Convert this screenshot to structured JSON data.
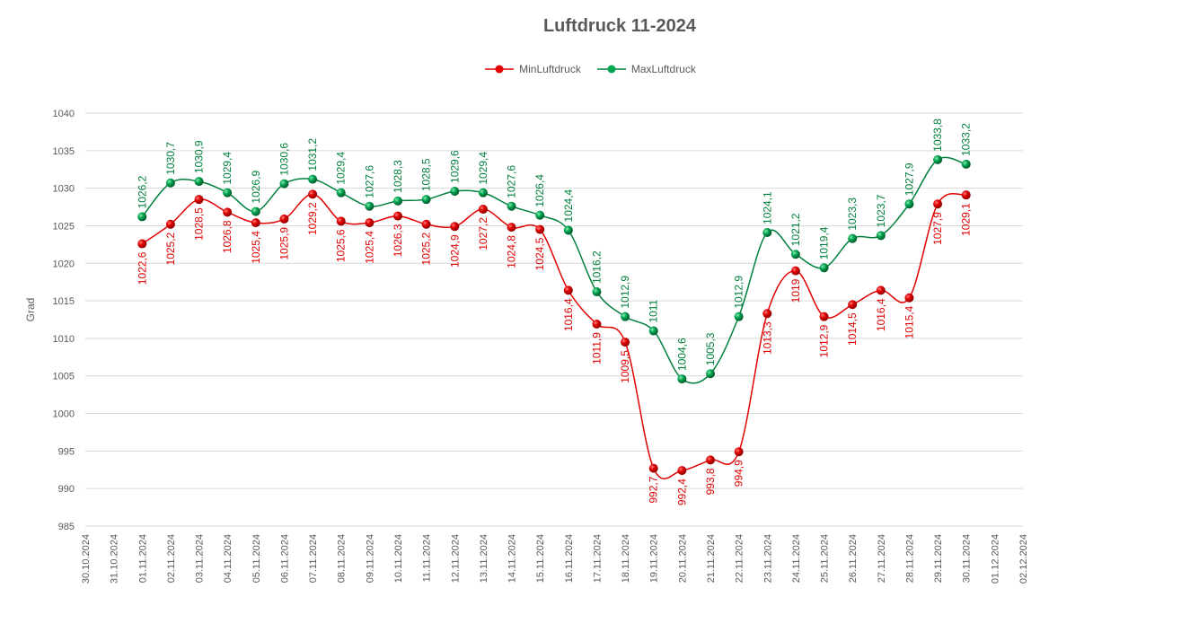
{
  "chart_data": {
    "type": "line",
    "title": "Luftdruck 11-2024",
    "ylabel": "Grad",
    "xlabel": "",
    "ylim": [
      985,
      1040
    ],
    "yticks": [
      985,
      990,
      995,
      1000,
      1005,
      1010,
      1015,
      1020,
      1025,
      1030,
      1035,
      1040
    ],
    "grid": true,
    "legend_position": "top",
    "x_ticks": [
      "30.10.2024",
      "31.10.2024",
      "01.11.2024",
      "02.11.2024",
      "03.11.2024",
      "04.11.2024",
      "05.11.2024",
      "06.11.2024",
      "07.11.2024",
      "08.11.2024",
      "09.11.2024",
      "10.11.2024",
      "11.11.2024",
      "12.11.2024",
      "13.11.2024",
      "14.11.2024",
      "15.11.2024",
      "16.11.2024",
      "17.11.2024",
      "18.11.2024",
      "19.11.2024",
      "20.11.2024",
      "21.11.2024",
      "22.11.2024",
      "23.11.2024",
      "24.11.2024",
      "25.11.2024",
      "26.11.2024",
      "27.11.2024",
      "28.11.2024",
      "29.11.2024",
      "30.11.2024",
      "01.12.2024",
      "02.12.2024"
    ],
    "x": [
      "01.11.2024",
      "02.11.2024",
      "03.11.2024",
      "04.11.2024",
      "05.11.2024",
      "06.11.2024",
      "07.11.2024",
      "08.11.2024",
      "09.11.2024",
      "10.11.2024",
      "11.11.2024",
      "12.11.2024",
      "13.11.2024",
      "14.11.2024",
      "15.11.2024",
      "16.11.2024",
      "17.11.2024",
      "18.11.2024",
      "19.11.2024",
      "20.11.2024",
      "21.11.2024",
      "22.11.2024",
      "23.11.2024",
      "24.11.2024",
      "25.11.2024",
      "26.11.2024",
      "27.11.2024",
      "28.11.2024",
      "29.11.2024",
      "30.11.2024"
    ],
    "series": [
      {
        "name": "MinLuftdruck",
        "color": "#e00000",
        "values": [
          1022.6,
          1025.2,
          1028.5,
          1026.8,
          1025.4,
          1025.9,
          1029.2,
          1025.6,
          1025.4,
          1026.3,
          1025.2,
          1024.9,
          1027.2,
          1024.8,
          1024.5,
          1016.4,
          1011.9,
          1009.5,
          992.7,
          992.4,
          993.8,
          994.9,
          1013.3,
          1019,
          1012.9,
          1014.5,
          1016.4,
          1015.4,
          1027.9,
          1029.1
        ],
        "labels": [
          "1022,6",
          "1025,2",
          "1028,5",
          "1026,8",
          "1025,4",
          "1025,9",
          "1029,2",
          "1025,6",
          "1025,4",
          "1026,3",
          "1025,2",
          "1024,9",
          "1027,2",
          "1024,8",
          "1024,5",
          "1016,4",
          "1011,9",
          "1009,5",
          "992,7",
          "992,4",
          "993,8",
          "994,9",
          "1013,3",
          "1019",
          "1012,9",
          "1014,5",
          "1016,4",
          "1015,4",
          "1027,9",
          "1029,1"
        ]
      },
      {
        "name": "MaxLuftdruck",
        "color": "#00803c",
        "values": [
          1026.2,
          1030.7,
          1030.9,
          1029.4,
          1026.9,
          1030.6,
          1031.2,
          1029.4,
          1027.6,
          1028.3,
          1028.5,
          1029.6,
          1029.4,
          1027.6,
          1026.4,
          1024.4,
          1016.2,
          1012.9,
          1011,
          1004.6,
          1005.3,
          1012.9,
          1024.1,
          1021.2,
          1019.4,
          1023.3,
          1023.7,
          1027.9,
          1033.8,
          1033.2
        ],
        "labels": [
          "1026,2",
          "1030,7",
          "1030,9",
          "1029,4",
          "1026,9",
          "1030,6",
          "1031,2",
          "1029,4",
          "1027,6",
          "1028,3",
          "1028,5",
          "1029,6",
          "1029,4",
          "1027,6",
          "1026,4",
          "1024,4",
          "1016,2",
          "1012,9",
          "1011",
          "1004,6",
          "1005,3",
          "1012,9",
          "1024,1",
          "1021,2",
          "1019,4",
          "1023,3",
          "1023,7",
          "1027,9",
          "1033,8",
          "1033,2"
        ]
      }
    ]
  }
}
